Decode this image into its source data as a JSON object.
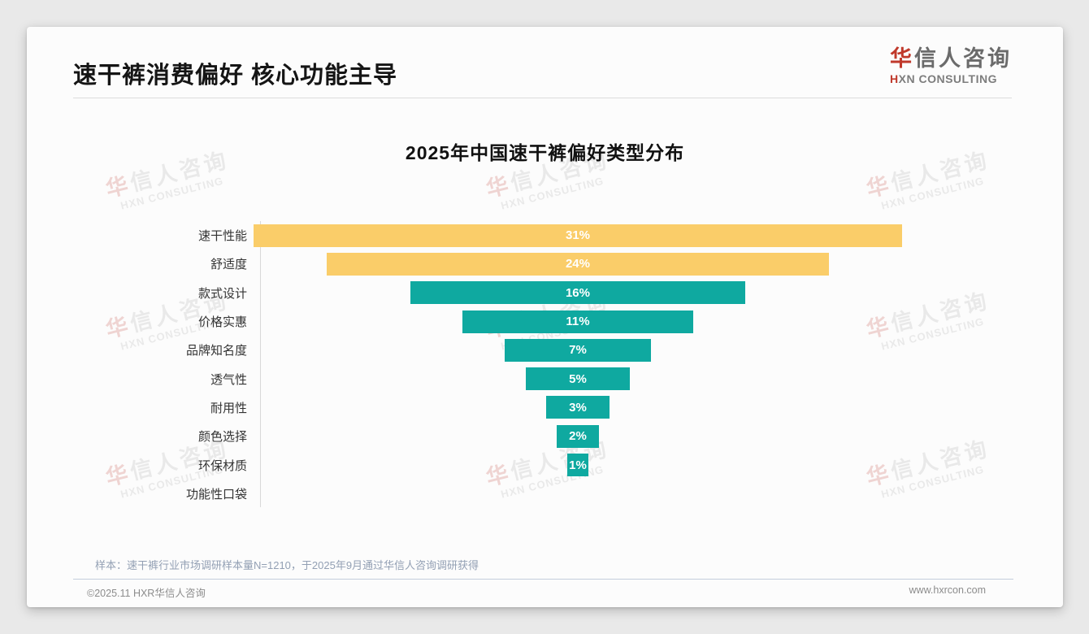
{
  "page": {
    "title": "速干裤消费偏好 核心功能主导",
    "note": "样本：速干裤行业市场调研样本量N=1210，于2025年9月通过华信人咨询调研获得",
    "footer_left": "©2025.11 HXR华信人咨询",
    "footer_right": "www.hxrcon.com"
  },
  "logo": {
    "cn_first": "华",
    "cn_rest": "信人咨询",
    "en_first": "H",
    "en_rest": "XN CONSULTING"
  },
  "watermark": {
    "cn_first": "华",
    "cn_rest": "信人咨询",
    "en": "HXN CONSULTING"
  },
  "colors": {
    "highlight_bar": "#FACD69",
    "primary_bar": "#0FA9A0",
    "logo_red": "#C0392B"
  },
  "chart_data": {
    "type": "bar",
    "subtype": "horizontal-centered-funnel",
    "title": "2025年中国速干裤偏好类型分布",
    "categories": [
      "速干性能",
      "舒适度",
      "款式设计",
      "价格实惠",
      "品牌知名度",
      "透气性",
      "耐用性",
      "颜色选择",
      "环保材质",
      "功能性口袋"
    ],
    "values": [
      31,
      24,
      16,
      11,
      7,
      5,
      3,
      2,
      1,
      0
    ],
    "unit": "%",
    "highlight_count": 2,
    "xlim": [
      0,
      31
    ],
    "value_labels": "inside-white-bold",
    "grid": false,
    "legend": false
  }
}
